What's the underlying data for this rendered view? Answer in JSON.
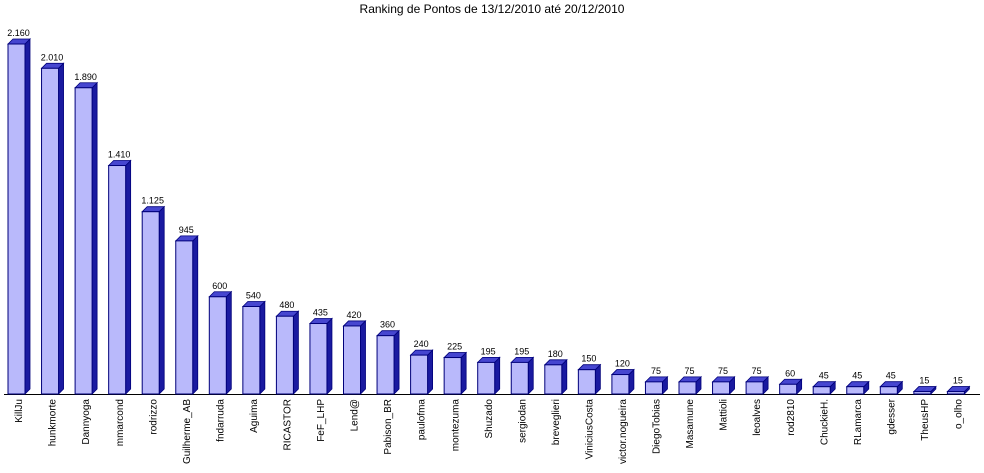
{
  "chart_data": {
    "type": "bar",
    "title": "Ranking de Pontos de 13/12/2010 até 20/12/2010",
    "xlabel": "",
    "ylabel": "",
    "ylim": [
      0,
      2160
    ],
    "grid": false,
    "legend": "none",
    "categories": [
      "KillJu",
      "hunkmorte",
      "Dannyoga",
      "mmarcond",
      "rodrizzo",
      "Guilherme_AB",
      "fndarruda",
      "Aguima",
      "RICASTOR",
      "FeF_LHP",
      "Lend@",
      "Pabison_BR",
      "paulofma",
      "montezuma",
      "Shuzado",
      "sergiodan",
      "breveglieri",
      "ViniciusCosta",
      "victor.nogueira",
      "DiegoTobias",
      "Masamune",
      "Mattioli",
      "leoalves",
      "rod2810",
      "ChuckieH.",
      "RLamarca",
      "gdesser",
      "TheusHP",
      "o_olho"
    ],
    "values": [
      2160,
      2010,
      1890,
      1410,
      1125,
      945,
      600,
      540,
      480,
      435,
      420,
      360,
      240,
      225,
      195,
      195,
      180,
      150,
      120,
      75,
      75,
      75,
      75,
      60,
      45,
      45,
      45,
      15,
      15
    ],
    "value_labels": [
      "2.160",
      "2.010",
      "1.890",
      "1.410",
      "1.125",
      "945",
      "600",
      "540",
      "480",
      "435",
      "420",
      "360",
      "240",
      "225",
      "195",
      "195",
      "180",
      "150",
      "120",
      "75",
      "75",
      "75",
      "75",
      "60",
      "45",
      "45",
      "45",
      "15",
      "15"
    ],
    "colors": {
      "bar_front": "#b9b9fb",
      "bar_side": "#1a1aa0",
      "bar_top": "#4646d0",
      "outline": "#00007a"
    }
  }
}
